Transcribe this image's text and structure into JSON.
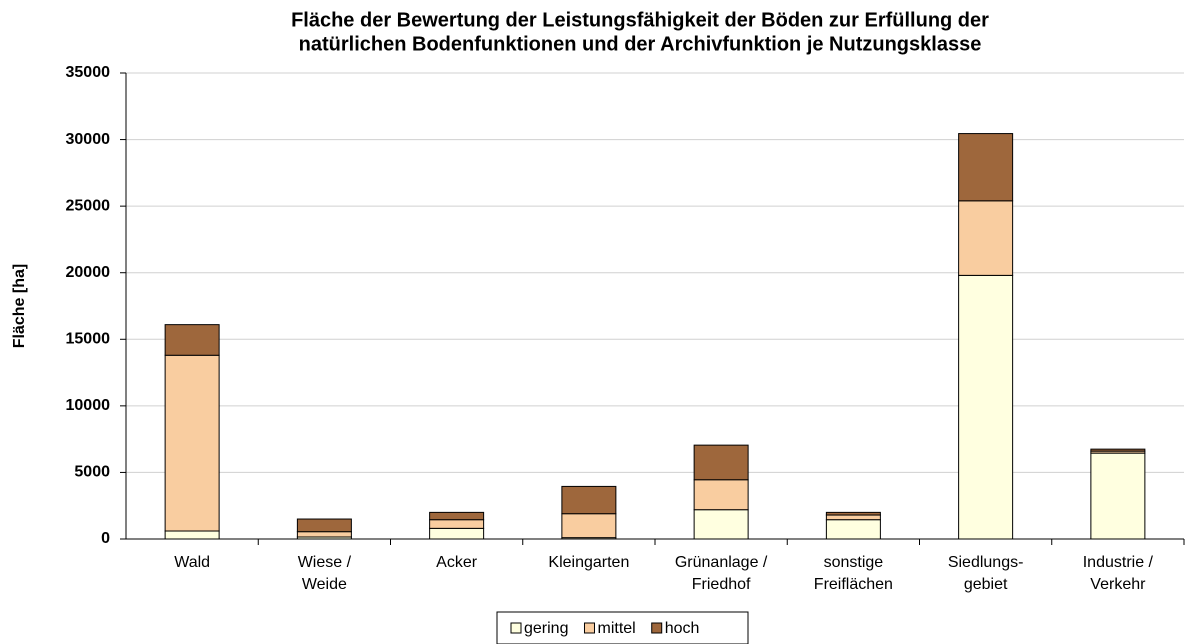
{
  "chart_data": {
    "type": "stacked_bar",
    "title": [
      "Fläche der Bewertung der Leistungsfähigkeit der Böden zur Erfüllung der",
      "natürlichen Bodenfunktionen und der Archivfunktion je Nutzungsklasse"
    ],
    "y_label": "Fläche [ha]",
    "categories": [
      [
        "Wald"
      ],
      [
        "Wiese /",
        "Weide"
      ],
      [
        "Acker"
      ],
      [
        "Kleingarten"
      ],
      [
        "Grünanlage /",
        "Friedhof"
      ],
      [
        "sonstige",
        "Freiflächen"
      ],
      [
        "Siedlungs-",
        "gebiet"
      ],
      [
        "Industrie /",
        "Verkehr"
      ]
    ],
    "series": [
      {
        "name": "gering",
        "color": "#ffffe0",
        "values": [
          600,
          150,
          800,
          100,
          2200,
          1450,
          19800,
          6450
        ]
      },
      {
        "name": "mittel",
        "color": "#f9cda0",
        "values": [
          13200,
          400,
          650,
          1800,
          2250,
          350,
          5600,
          150
        ]
      },
      {
        "name": "hoch",
        "color": "#9e673c",
        "values": [
          2300,
          950,
          550,
          2050,
          2600,
          200,
          5050,
          150
        ]
      }
    ],
    "ylim": [
      0,
      35000
    ],
    "yticks": [
      0,
      5000,
      10000,
      15000,
      20000,
      25000,
      30000,
      35000
    ],
    "grid": true,
    "legend": "bottom"
  }
}
